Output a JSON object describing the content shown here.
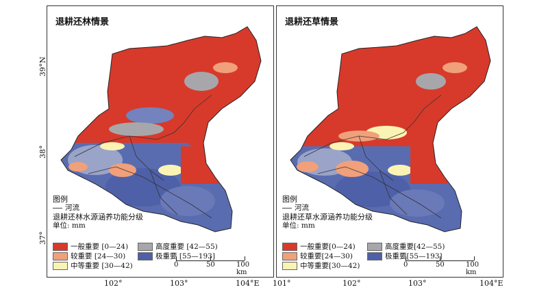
{
  "panels": [
    {
      "id": "left",
      "title": "退耕还林情景",
      "legend": {
        "heading": "图例",
        "river_label": "河流",
        "group_title": "退耕还林水源涵养功能分级",
        "unit": "单位: mm",
        "classes": [
          {
            "label": "一般重要 [0—24)",
            "color": "#d73a2b"
          },
          {
            "label": "较重要 [24—30)",
            "color": "#f0a07a"
          },
          {
            "label": "中等重要 [30—42)",
            "color": "#fbf3b4"
          },
          {
            "label": "高度重要 [42—55)",
            "color": "#a7a7ab"
          },
          {
            "label": "极重要 [55—193]",
            "color": "#4e60a8"
          }
        ]
      }
    },
    {
      "id": "right",
      "title": "退耕还草情景",
      "legend": {
        "heading": "图例",
        "river_label": "河流",
        "group_title": "退耕还草水源涵养功能分级",
        "unit": "单位: mm",
        "classes": [
          {
            "label": "一般重要[0—24)",
            "color": "#d73a2b"
          },
          {
            "label": "较重要[24—30)",
            "color": "#f0a07a"
          },
          {
            "label": "中等重要[30—42)",
            "color": "#fbf3b4"
          },
          {
            "label": "高度重要[42—55)",
            "color": "#a7a7ab"
          },
          {
            "label": "极重要[55—193]",
            "color": "#4e60a8"
          }
        ]
      }
    }
  ],
  "scale_bar": {
    "labels": [
      "0",
      "50",
      "100 km"
    ]
  },
  "longitude_labels": [
    "102°",
    "103°",
    "104°E",
    "101°",
    "102°",
    "103°",
    "104°E"
  ],
  "latitude_labels": [
    "39°N",
    "38°",
    "37°"
  ]
}
